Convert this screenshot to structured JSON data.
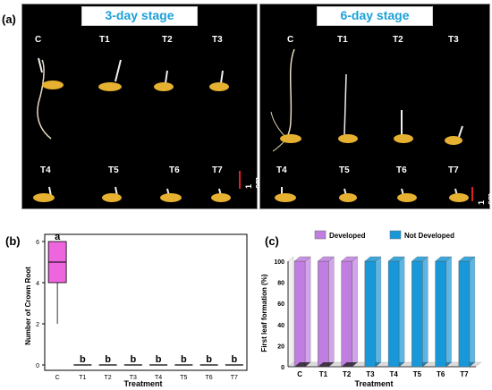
{
  "panel_a": {
    "letter": "(a)",
    "left": {
      "title": "3-day stage",
      "labels_top": [
        "C",
        "T1",
        "T2",
        "T3"
      ],
      "labels_bottom": [
        "T4",
        "T5",
        "T6",
        "T7"
      ],
      "scale": "1 cm"
    },
    "right": {
      "title": "6-day stage",
      "labels_top": [
        "C",
        "T1",
        "T2",
        "T3"
      ],
      "labels_bottom": [
        "T4",
        "T5",
        "T6",
        "T7"
      ],
      "scale": "1 cm"
    }
  },
  "panel_b": {
    "letter": "(b)",
    "chart_data": {
      "type": "box",
      "categories": [
        "C",
        "T1",
        "T2",
        "T3",
        "T4",
        "T5",
        "T6",
        "T7"
      ],
      "ylabel": "Number of Crown Root",
      "xlabel": "Treatment",
      "ylim": [
        0,
        6
      ],
      "yticks": [
        "0",
        "2",
        "4",
        "6"
      ],
      "boxes": [
        {
          "min": 2,
          "q1": 4,
          "median": 5,
          "q3": 6,
          "max": 6
        },
        {
          "min": 0,
          "q1": 0,
          "median": 0,
          "q3": 0,
          "max": 0
        },
        {
          "min": 0,
          "q1": 0,
          "median": 0,
          "q3": 0,
          "max": 0
        },
        {
          "min": 0,
          "q1": 0,
          "median": 0,
          "q3": 0,
          "max": 0
        },
        {
          "min": 0,
          "q1": 0,
          "median": 0,
          "q3": 0,
          "max": 0
        },
        {
          "min": 0,
          "q1": 0,
          "median": 0,
          "q3": 0,
          "max": 0
        },
        {
          "min": 0,
          "q1": 0,
          "median": 0,
          "q3": 0,
          "max": 0
        },
        {
          "min": 0,
          "q1": 0,
          "median": 0,
          "q3": 0,
          "max": 0
        }
      ],
      "letters": [
        "a",
        "b",
        "b",
        "b",
        "b",
        "b",
        "b",
        "b"
      ],
      "color": "#ee66dd"
    }
  },
  "panel_c": {
    "letter": "(c)",
    "chart_data": {
      "type": "bar",
      "categories": [
        "C",
        "T1",
        "T2",
        "T3",
        "T4",
        "T5",
        "T6",
        "T7"
      ],
      "series": [
        {
          "name": "Developed",
          "values": [
            100,
            100,
            100,
            0,
            0,
            0,
            0,
            0
          ],
          "color": "#c07ee0"
        },
        {
          "name": "Not Developed",
          "values": [
            0,
            0,
            0,
            100,
            100,
            100,
            100,
            100
          ],
          "color": "#1898d8"
        }
      ],
      "ylabel": "First leaf formation (%)",
      "xlabel": "Treatment",
      "ylim": [
        0,
        100
      ],
      "yticks": [
        "0",
        "20",
        "40",
        "60",
        "80",
        "100"
      ],
      "legend": "top"
    }
  }
}
